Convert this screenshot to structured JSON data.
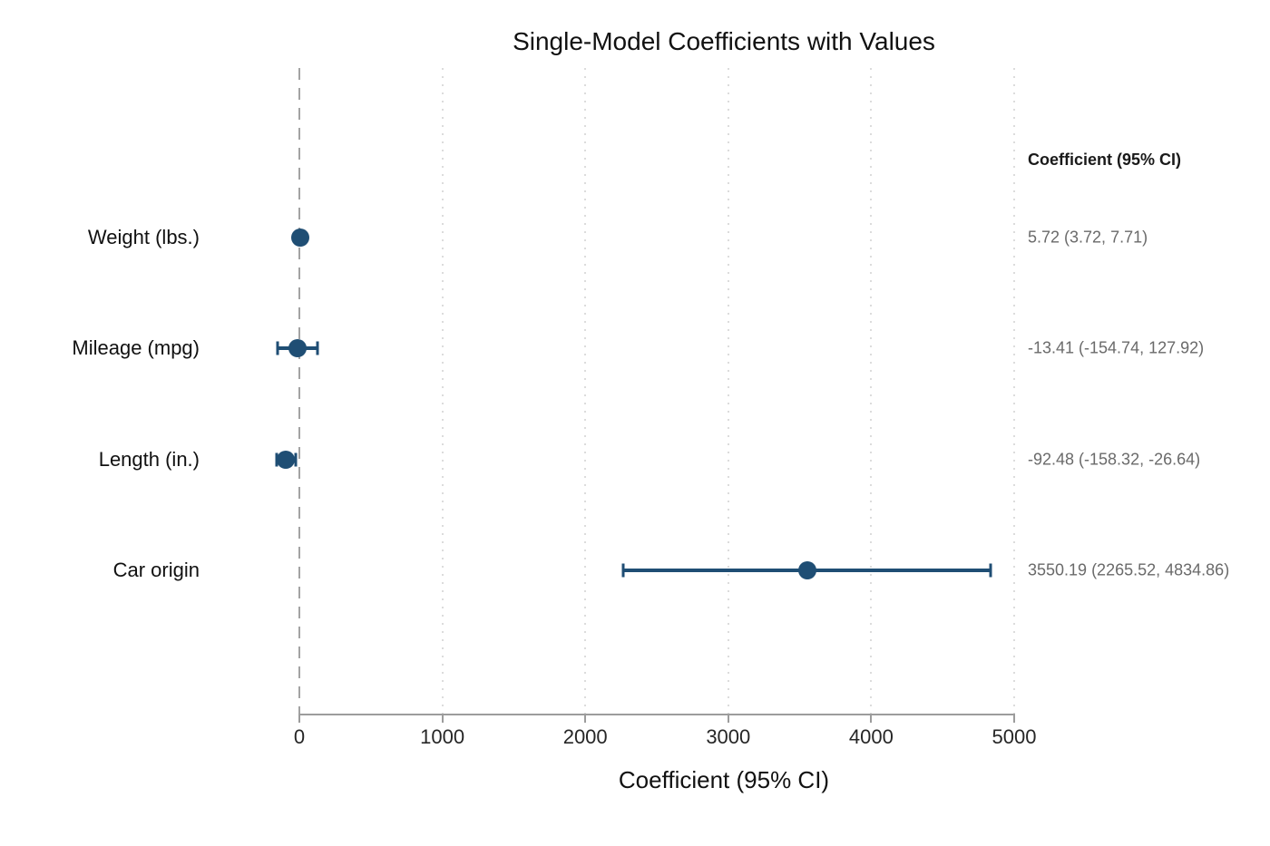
{
  "chart_data": {
    "type": "scatter",
    "subtype": "forest-plot",
    "title": "Single-Model Coefficients with Values",
    "xlabel": "Coefficient (95% CI)",
    "right_column_header": "Coefficient (95% CI)",
    "x_ticks": [
      0,
      1000,
      2000,
      3000,
      4000,
      5000
    ],
    "xlim": [
      0,
      5000
    ],
    "zero_reference_line": 0,
    "grid": "dotted-vertical",
    "marker_color": "#1f4e74",
    "annotation_color": "#6a6a6a",
    "rows": [
      {
        "label": "Weight (lbs.)",
        "estimate": 5.72,
        "ci_low": 3.72,
        "ci_high": 7.71,
        "value_text": "5.72 (3.72, 7.71)"
      },
      {
        "label": "Mileage (mpg)",
        "estimate": -13.41,
        "ci_low": -154.74,
        "ci_high": 127.92,
        "value_text": "-13.41 (-154.74, 127.92)"
      },
      {
        "label": "Length (in.)",
        "estimate": -92.48,
        "ci_low": -158.32,
        "ci_high": -26.64,
        "value_text": "-92.48 (-158.32, -26.64)"
      },
      {
        "label": "Car origin",
        "estimate": 3550.19,
        "ci_low": 2265.52,
        "ci_high": 4834.86,
        "value_text": "3550.19 (2265.52, 4834.86)"
      }
    ]
  }
}
